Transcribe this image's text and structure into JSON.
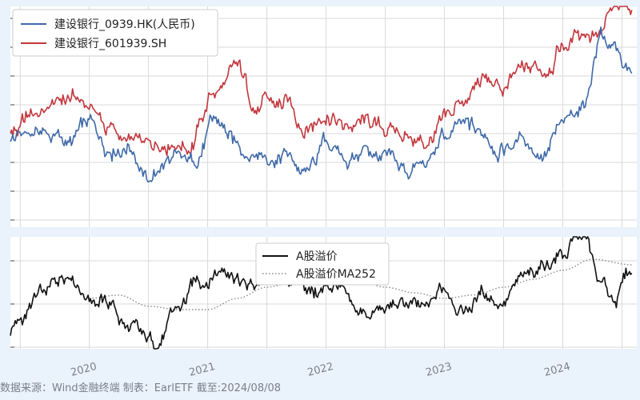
{
  "footer": "数据来源：Wind金融终端 制表：EarlETF 截至:2024/08/08",
  "colors": {
    "hk": "#3e69a8",
    "sh": "#c2373d",
    "premium": "#111111",
    "ma": "#888888"
  },
  "chart_data": [
    {
      "type": "line",
      "title": "",
      "xlabel": "",
      "ylabel": "",
      "x_ticks": [
        "2020",
        "2021",
        "2022",
        "2023",
        "2024"
      ],
      "x_range": [
        "2019-05",
        "2024-08"
      ],
      "grid": true,
      "legend_position": "top-left",
      "y_normalized": true,
      "series": [
        {
          "name": "建设银行_0939.HK(人民币)",
          "color": "#3e69a8",
          "x": [
            "2019-05",
            "2019-08",
            "2019-11",
            "2020-01",
            "2020-03",
            "2020-05",
            "2020-07",
            "2020-09",
            "2020-11",
            "2021-02",
            "2021-04",
            "2021-06",
            "2021-09",
            "2021-11",
            "2022-01",
            "2022-03",
            "2022-05",
            "2022-07",
            "2022-09",
            "2022-11",
            "2023-01",
            "2023-03",
            "2023-05",
            "2023-07",
            "2023-09",
            "2023-11",
            "2024-01",
            "2024-03",
            "2024-05",
            "2024-06",
            "2024-08"
          ],
          "values": [
            0.4,
            0.44,
            0.38,
            0.46,
            0.37,
            0.38,
            0.21,
            0.3,
            0.28,
            0.47,
            0.36,
            0.34,
            0.32,
            0.24,
            0.38,
            0.31,
            0.35,
            0.3,
            0.25,
            0.28,
            0.4,
            0.45,
            0.42,
            0.36,
            0.4,
            0.33,
            0.45,
            0.55,
            0.88,
            0.8,
            0.68
          ]
        },
        {
          "name": "建设银行_601939.SH",
          "color": "#c2373d",
          "x": [
            "2019-05",
            "2019-08",
            "2019-11",
            "2020-01",
            "2020-03",
            "2020-05",
            "2020-07",
            "2020-09",
            "2020-11",
            "2021-02",
            "2021-04",
            "2021-06",
            "2021-09",
            "2021-11",
            "2022-01",
            "2022-03",
            "2022-05",
            "2022-07",
            "2022-09",
            "2022-11",
            "2023-01",
            "2023-03",
            "2023-05",
            "2023-07",
            "2023-09",
            "2023-11",
            "2024-01",
            "2024-03",
            "2024-05",
            "2024-06",
            "2024-08"
          ],
          "values": [
            0.42,
            0.52,
            0.58,
            0.55,
            0.45,
            0.38,
            0.36,
            0.4,
            0.38,
            0.62,
            0.7,
            0.55,
            0.55,
            0.46,
            0.52,
            0.45,
            0.47,
            0.44,
            0.42,
            0.38,
            0.46,
            0.58,
            0.66,
            0.62,
            0.7,
            0.72,
            0.82,
            0.88,
            0.9,
            0.96,
            0.99
          ]
        }
      ]
    },
    {
      "type": "line",
      "title": "",
      "xlabel": "",
      "ylabel": "",
      "grid": true,
      "legend_position": "top-center",
      "y_normalized": true,
      "series": [
        {
          "name": "A股溢价",
          "color": "#111111",
          "x": [
            "2019-05",
            "2019-08",
            "2019-11",
            "2020-01",
            "2020-03",
            "2020-05",
            "2020-07",
            "2020-08",
            "2020-10",
            "2020-12",
            "2021-03",
            "2021-05",
            "2021-07",
            "2021-10",
            "2021-12",
            "2022-02",
            "2022-04",
            "2022-07",
            "2022-09",
            "2022-11",
            "2023-01",
            "2023-03",
            "2023-05",
            "2023-07",
            "2023-09",
            "2023-11",
            "2024-01",
            "2024-03",
            "2024-05",
            "2024-06",
            "2024-08"
          ],
          "values": [
            0.15,
            0.45,
            0.7,
            0.48,
            0.4,
            0.18,
            0.05,
            0.08,
            0.35,
            0.6,
            0.75,
            0.55,
            0.6,
            0.62,
            0.5,
            0.58,
            0.3,
            0.35,
            0.4,
            0.32,
            0.55,
            0.35,
            0.5,
            0.42,
            0.6,
            0.75,
            0.85,
            1.0,
            0.55,
            0.45,
            0.7
          ]
        },
        {
          "name": "A股溢价MA252",
          "color": "#888888",
          "x": [
            "2020-01",
            "2020-04",
            "2020-07",
            "2020-10",
            "2021-01",
            "2021-04",
            "2021-07",
            "2021-10",
            "2022-01",
            "2022-04",
            "2022-07",
            "2022-10",
            "2023-01",
            "2023-04",
            "2023-07",
            "2023-10",
            "2024-01",
            "2024-04",
            "2024-08"
          ],
          "values": [
            0.45,
            0.48,
            0.38,
            0.35,
            0.35,
            0.45,
            0.55,
            0.6,
            0.65,
            0.62,
            0.55,
            0.5,
            0.45,
            0.48,
            0.55,
            0.62,
            0.7,
            0.8,
            0.75
          ]
        }
      ]
    }
  ]
}
